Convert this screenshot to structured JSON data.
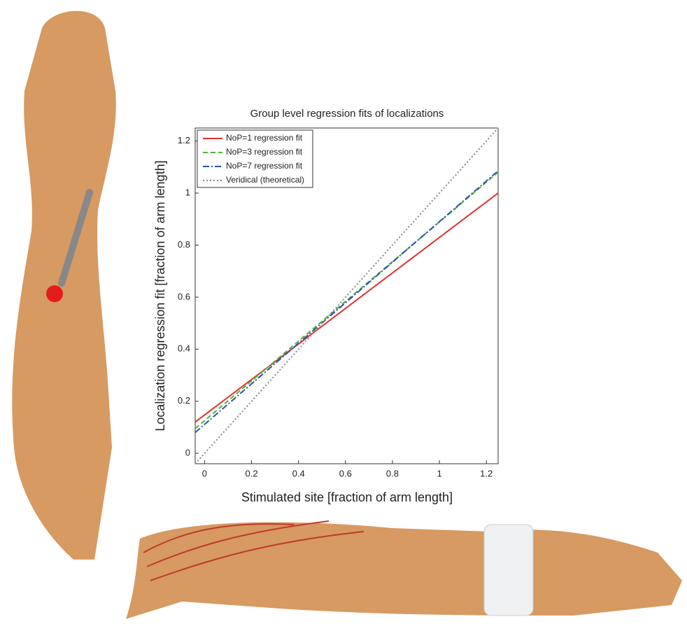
{
  "chart_data": {
    "type": "line",
    "title": "Group level regression fits of localizations",
    "x_label": "Stimulated site [fraction of arm length]",
    "y_label": "Localization regression fit [fraction of arm length]",
    "x": [
      -0.04,
      1.25
    ],
    "series": [
      {
        "name": "NoP=1 regression fit",
        "color": "#e03030",
        "dash": "solid",
        "values": [
          0.12,
          1.0
        ]
      },
      {
        "name": "NoP=3 regression fit",
        "color": "#4cb535",
        "dash": "dashed",
        "values": [
          0.095,
          1.08
        ]
      },
      {
        "name": "NoP=7 regression fit",
        "color": "#2f4fa8",
        "dash": "dashdot",
        "values": [
          0.08,
          1.085
        ]
      },
      {
        "name": "Veridical (theoretical)",
        "color": "#888888",
        "dash": "dotted",
        "values": [
          -0.04,
          1.25
        ]
      }
    ],
    "xlim": [
      -0.04,
      1.25
    ],
    "ylim": [
      -0.04,
      1.25
    ],
    "xticks": [
      0,
      0.2,
      0.4,
      0.6,
      0.8,
      1,
      1.2
    ],
    "yticks": [
      0,
      0.2,
      0.4,
      0.6,
      0.8,
      1,
      1.2
    ],
    "legend": "upper left"
  }
}
